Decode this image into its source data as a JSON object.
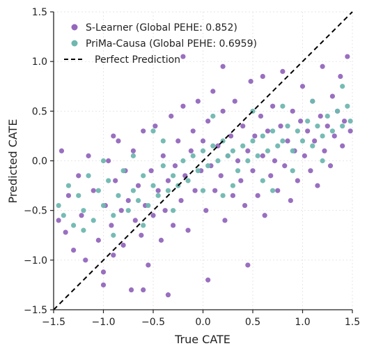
{
  "chart_data": {
    "type": "scatter",
    "xlabel": "True CATE",
    "ylabel": "Predicted CATE",
    "xlim": [
      -1.5,
      1.5
    ],
    "ylim": [
      -1.5,
      1.5
    ],
    "xticks": [
      "−1.5",
      "−1.0",
      "−0.5",
      "0.0",
      "0.5",
      "1.0",
      "1.5"
    ],
    "yticks": [
      "−1.5",
      "−1.0",
      "−0.5",
      "0.0",
      "0.5",
      "1.0",
      "1.5"
    ],
    "grid": true,
    "legend_position": "top-left",
    "colors": {
      "s_learner": "#9467bd",
      "prima": "#6fb7b0",
      "perfect": "#000000"
    },
    "series": [
      {
        "name": "S-Learner (Global PEHE: 0.852)",
        "color": "#9467bd",
        "points": [
          [
            -1.45,
            -0.6
          ],
          [
            -1.38,
            -0.72
          ],
          [
            -1.35,
            -0.35
          ],
          [
            -1.3,
            -0.9
          ],
          [
            -1.25,
            -0.15
          ],
          [
            -1.22,
            -0.55
          ],
          [
            -1.18,
            -1.0
          ],
          [
            -1.15,
            0.05
          ],
          [
            -1.1,
            -0.3
          ],
          [
            -1.05,
            -0.8
          ],
          [
            -1.0,
            -1.12
          ],
          [
            -0.98,
            -0.45
          ],
          [
            -0.95,
            0.0
          ],
          [
            -0.92,
            -0.65
          ],
          [
            -0.9,
            -0.95
          ],
          [
            -0.88,
            -0.2
          ],
          [
            -0.85,
            0.2
          ],
          [
            -0.82,
            -0.5
          ],
          [
            -0.8,
            -0.85
          ],
          [
            -0.78,
            -0.1
          ],
          [
            -0.75,
            -0.4
          ],
          [
            -0.72,
            -1.3
          ],
          [
            -0.7,
            0.1
          ],
          [
            -0.68,
            -0.6
          ],
          [
            -0.65,
            -0.25
          ],
          [
            -0.62,
            -0.75
          ],
          [
            -0.6,
            0.3
          ],
          [
            -0.58,
            -0.45
          ],
          [
            -0.55,
            -1.05
          ],
          [
            -0.52,
            -0.1
          ],
          [
            -0.5,
            -0.55
          ],
          [
            -0.48,
            0.35
          ],
          [
            -0.45,
            -0.3
          ],
          [
            -0.42,
            -0.8
          ],
          [
            -0.4,
            0.05
          ],
          [
            -0.38,
            -0.5
          ],
          [
            -0.35,
            -0.2
          ],
          [
            -0.32,
            0.45
          ],
          [
            -0.3,
            -0.65
          ],
          [
            -0.28,
            -0.05
          ],
          [
            -0.25,
            0.2
          ],
          [
            -0.22,
            -0.4
          ],
          [
            -0.2,
            0.55
          ],
          [
            -0.18,
            -0.15
          ],
          [
            -0.15,
            -0.7
          ],
          [
            -0.12,
            0.1
          ],
          [
            -0.1,
            0.3
          ],
          [
            -0.08,
            -0.3
          ],
          [
            -0.05,
            0.6
          ],
          [
            -0.02,
            -0.1
          ],
          [
            0.0,
            0.2
          ],
          [
            0.03,
            -0.5
          ],
          [
            0.05,
            0.4
          ],
          [
            0.08,
            -0.05
          ],
          [
            0.1,
            0.7
          ],
          [
            0.12,
            -0.3
          ],
          [
            0.15,
            0.15
          ],
          [
            0.18,
            -0.15
          ],
          [
            0.2,
            0.5
          ],
          [
            0.22,
            -0.6
          ],
          [
            0.25,
            0.05
          ],
          [
            0.28,
            0.25
          ],
          [
            0.3,
            -0.35
          ],
          [
            0.32,
            0.6
          ],
          [
            0.35,
            0.0
          ],
          [
            0.38,
            -0.2
          ],
          [
            0.4,
            0.35
          ],
          [
            0.42,
            -0.45
          ],
          [
            0.45,
            0.1
          ],
          [
            0.48,
            0.8
          ],
          [
            0.5,
            -0.1
          ],
          [
            0.52,
            0.25
          ],
          [
            0.55,
            -0.35
          ],
          [
            0.58,
            0.45
          ],
          [
            0.6,
            0.05
          ],
          [
            0.62,
            -0.55
          ],
          [
            0.65,
            0.3
          ],
          [
            0.68,
            -0.15
          ],
          [
            0.7,
            0.55
          ],
          [
            0.72,
            0.0
          ],
          [
            0.75,
            -0.3
          ],
          [
            0.78,
            0.35
          ],
          [
            0.8,
            0.9
          ],
          [
            0.82,
            -0.05
          ],
          [
            0.85,
            0.2
          ],
          [
            0.88,
            -0.4
          ],
          [
            0.9,
            0.5
          ],
          [
            0.92,
            0.1
          ],
          [
            0.95,
            -0.2
          ],
          [
            0.98,
            0.4
          ],
          [
            1.0,
            0.75
          ],
          [
            1.02,
            0.05
          ],
          [
            1.05,
            0.3
          ],
          [
            1.08,
            -0.1
          ],
          [
            1.1,
            0.6
          ],
          [
            1.12,
            0.2
          ],
          [
            1.15,
            -0.25
          ],
          [
            1.18,
            0.45
          ],
          [
            1.2,
            0.95
          ],
          [
            1.22,
            0.1
          ],
          [
            1.25,
            0.35
          ],
          [
            1.28,
            -0.05
          ],
          [
            1.3,
            0.65
          ],
          [
            1.32,
            0.25
          ],
          [
            1.35,
            0.5
          ],
          [
            1.38,
            0.85
          ],
          [
            1.4,
            0.15
          ],
          [
            1.42,
            0.4
          ],
          [
            1.45,
            1.05
          ],
          [
            1.48,
            0.3
          ],
          [
            -1.42,
            0.1
          ],
          [
            -1.0,
            -1.25
          ],
          [
            -0.35,
            -1.35
          ],
          [
            0.05,
            -1.2
          ],
          [
            0.45,
            -1.05
          ],
          [
            -0.6,
            -1.3
          ],
          [
            -0.2,
            1.05
          ],
          [
            0.2,
            0.95
          ],
          [
            0.6,
            0.85
          ],
          [
            -0.9,
            0.25
          ]
        ]
      },
      {
        "name": "PriMa-Causa (Global PEHE: 0.6959)",
        "color": "#6fb7b0",
        "points": [
          [
            -1.45,
            -0.45
          ],
          [
            -1.4,
            -0.55
          ],
          [
            -1.35,
            -0.25
          ],
          [
            -1.3,
            -0.65
          ],
          [
            -1.25,
            -0.35
          ],
          [
            -1.2,
            -0.5
          ],
          [
            -1.15,
            -0.15
          ],
          [
            -1.1,
            -0.6
          ],
          [
            -1.05,
            -0.3
          ],
          [
            -1.0,
            -0.45
          ],
          [
            -0.95,
            -0.2
          ],
          [
            -0.9,
            -0.55
          ],
          [
            -0.85,
            -0.35
          ],
          [
            -0.8,
            -0.1
          ],
          [
            -0.75,
            -0.5
          ],
          [
            -0.7,
            -0.3
          ],
          [
            -0.65,
            -0.4
          ],
          [
            -0.6,
            -0.15
          ],
          [
            -0.55,
            -0.45
          ],
          [
            -0.5,
            -0.25
          ],
          [
            -0.45,
            -0.35
          ],
          [
            -0.4,
            -0.05
          ],
          [
            -0.35,
            -0.3
          ],
          [
            -0.3,
            -0.15
          ],
          [
            -0.25,
            -0.25
          ],
          [
            -0.2,
            0.0
          ],
          [
            -0.15,
            -0.2
          ],
          [
            -0.1,
            0.05
          ],
          [
            -0.05,
            -0.1
          ],
          [
            0.0,
            0.1
          ],
          [
            0.05,
            -0.05
          ],
          [
            0.1,
            0.15
          ],
          [
            0.15,
            0.0
          ],
          [
            0.2,
            0.2
          ],
          [
            0.25,
            0.05
          ],
          [
            0.3,
            0.1
          ],
          [
            0.35,
            -0.1
          ],
          [
            0.4,
            0.15
          ],
          [
            0.45,
            0.0
          ],
          [
            0.5,
            0.2
          ],
          [
            0.55,
            0.05
          ],
          [
            0.6,
            0.25
          ],
          [
            0.65,
            0.1
          ],
          [
            0.7,
            0.3
          ],
          [
            0.75,
            0.15
          ],
          [
            0.8,
            0.2
          ],
          [
            0.85,
            0.35
          ],
          [
            0.9,
            0.1
          ],
          [
            0.95,
            0.3
          ],
          [
            1.0,
            0.2
          ],
          [
            1.05,
            0.4
          ],
          [
            1.1,
            0.15
          ],
          [
            1.15,
            0.35
          ],
          [
            1.2,
            0.25
          ],
          [
            1.25,
            0.45
          ],
          [
            1.3,
            0.3
          ],
          [
            1.35,
            0.5
          ],
          [
            1.4,
            0.35
          ],
          [
            1.45,
            0.55
          ],
          [
            1.48,
            0.4
          ],
          [
            -1.2,
            -0.7
          ],
          [
            -0.9,
            -0.75
          ],
          [
            -0.6,
            -0.65
          ],
          [
            -0.3,
            -0.5
          ],
          [
            0.0,
            -0.3
          ],
          [
            0.3,
            -0.25
          ],
          [
            0.6,
            -0.2
          ],
          [
            0.9,
            -0.1
          ],
          [
            1.2,
            0.0
          ],
          [
            -0.7,
            0.05
          ],
          [
            -0.4,
            0.2
          ],
          [
            0.1,
            0.45
          ],
          [
            0.5,
            0.5
          ],
          [
            0.8,
            0.55
          ],
          [
            1.1,
            0.6
          ],
          [
            1.4,
            0.75
          ],
          [
            -1.0,
            0.0
          ],
          [
            -0.5,
            0.3
          ],
          [
            0.2,
            -0.35
          ],
          [
            0.7,
            -0.3
          ]
        ]
      },
      {
        "name": "Perfect Prediction",
        "color": "#000000",
        "style": "dashed",
        "points": [
          [
            -1.5,
            -1.5
          ],
          [
            1.5,
            1.5
          ]
        ]
      }
    ]
  }
}
